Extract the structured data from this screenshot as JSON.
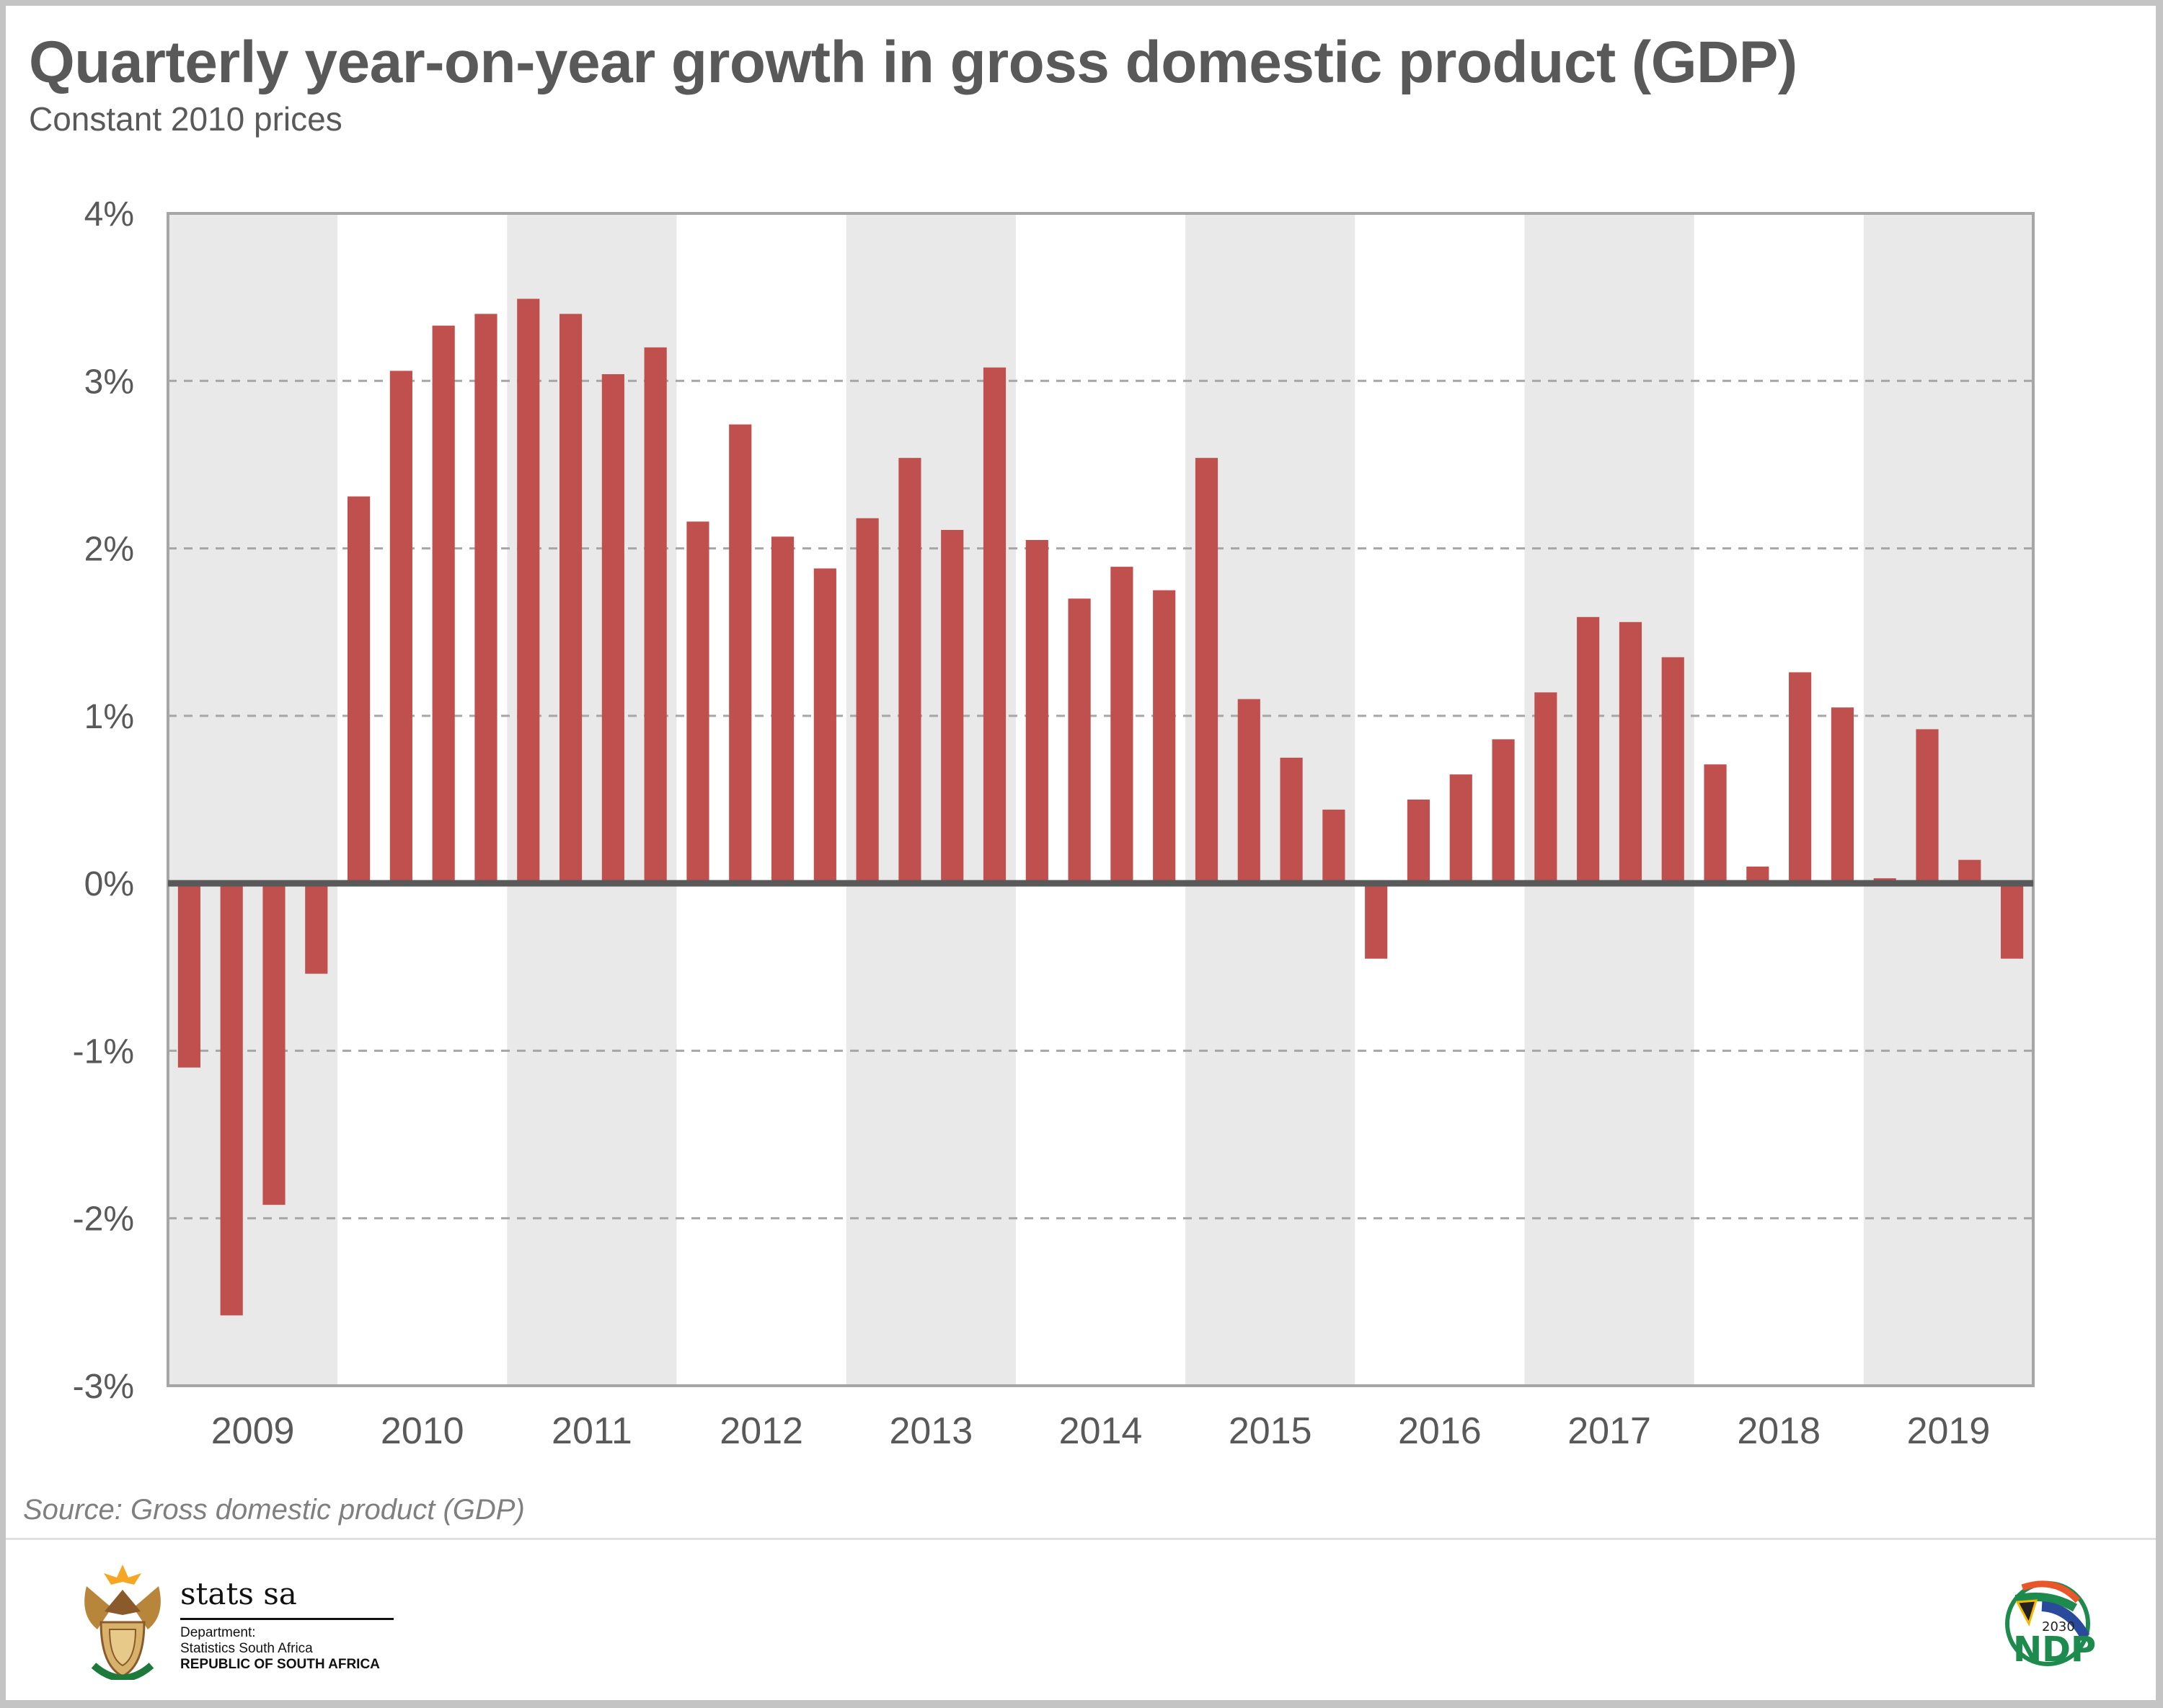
{
  "title": "Quarterly year-on-year growth in gross domestic product (GDP)",
  "subtitle": "Constant 2010 prices",
  "source": "Source: Gross domestic product (GDP)",
  "footer": {
    "org_name": "stats sa",
    "line1": "Department:",
    "line2": "Statistics South Africa",
    "line3": "REPUBLIC OF SOUTH AFRICA",
    "left_logo": "coat-of-arms-icon",
    "right_logo_text_year": "2030",
    "right_logo_text": "NDP"
  },
  "colors": {
    "bar": "#c0504d",
    "band": "#e9e9e9",
    "zero_line": "#595959",
    "grid": "#a6a6a6",
    "text": "#595959"
  },
  "chart_data": {
    "type": "bar",
    "title": "Quarterly year-on-year growth in gross domestic product (GDP)",
    "subtitle": "Constant 2010 prices",
    "xlabel": "",
    "ylabel": "",
    "ylim": [
      -3,
      4
    ],
    "yticks": [
      -3,
      -2,
      -1,
      0,
      1,
      2,
      3,
      4
    ],
    "ytick_labels": [
      "-3%",
      "-2%",
      "-1%",
      "0%",
      "1%",
      "2%",
      "3%",
      "4%"
    ],
    "grid": "horizontal dashed",
    "legend": "none",
    "years": [
      "2009",
      "2010",
      "2011",
      "2012",
      "2013",
      "2014",
      "2015",
      "2016",
      "2017",
      "2018",
      "2019"
    ],
    "categories": [
      "2009Q1",
      "2009Q2",
      "2009Q3",
      "2009Q4",
      "2010Q1",
      "2010Q2",
      "2010Q3",
      "2010Q4",
      "2011Q1",
      "2011Q2",
      "2011Q3",
      "2011Q4",
      "2012Q1",
      "2012Q2",
      "2012Q3",
      "2012Q4",
      "2013Q1",
      "2013Q2",
      "2013Q3",
      "2013Q4",
      "2014Q1",
      "2014Q2",
      "2014Q3",
      "2014Q4",
      "2015Q1",
      "2015Q2",
      "2015Q3",
      "2015Q4",
      "2016Q1",
      "2016Q2",
      "2016Q3",
      "2016Q4",
      "2017Q1",
      "2017Q2",
      "2017Q3",
      "2017Q4",
      "2018Q1",
      "2018Q2",
      "2018Q3",
      "2018Q4",
      "2019Q1",
      "2019Q2",
      "2019Q3",
      "2019Q4"
    ],
    "values": [
      -1.1,
      -2.58,
      -1.92,
      -0.54,
      2.31,
      3.06,
      3.33,
      3.4,
      3.49,
      3.4,
      3.04,
      3.2,
      2.16,
      2.74,
      2.07,
      1.88,
      2.18,
      2.54,
      2.11,
      3.08,
      2.05,
      1.7,
      1.89,
      1.75,
      2.54,
      1.1,
      0.75,
      0.44,
      -0.45,
      0.5,
      0.65,
      0.86,
      1.14,
      1.59,
      1.56,
      1.35,
      0.71,
      0.1,
      1.26,
      1.05,
      0.03,
      0.92,
      0.14,
      -0.45
    ]
  }
}
